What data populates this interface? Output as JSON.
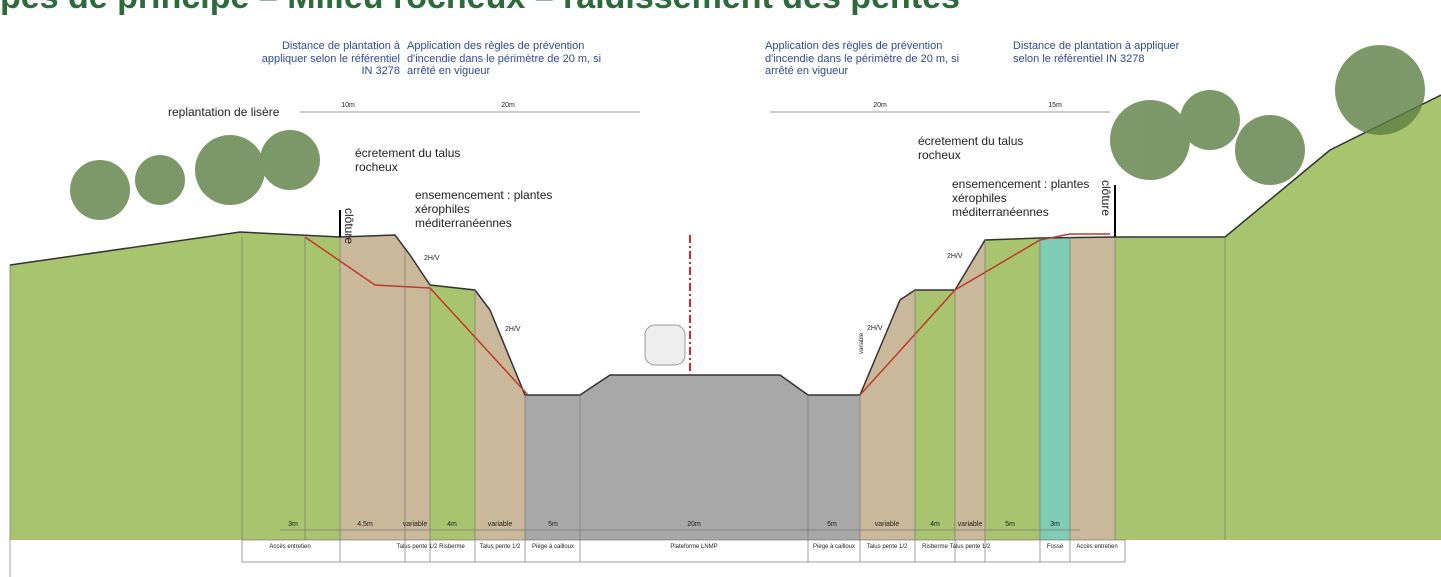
{
  "header": {
    "title": "pes de principe – Milieu rocheux – raidissement des pentes"
  },
  "top_notes": [
    "Distance de plantation à appliquer selon le référentiel IN 3278",
    "Application des règles de prévention d'incendie dans le périmètre de 20 m, si arrêté en vigueur",
    "Application des règles de prévention d'incendie dans le périmètre de 20 m, si arrêté en vigueur",
    "Distance de plantation à appliquer selon le référentiel IN 3278"
  ],
  "top_dimensions": [
    "10m",
    "20m",
    "20m",
    "15m"
  ],
  "annotations": {
    "replantation": "replantation de lisère",
    "ecretement_left": "écretement du talus rocheux",
    "ecretement_right": "écretement du talus rocheux",
    "ensemencement_left": "ensemencement : plantes xérophiles méditerranéennes",
    "ensemencement_right": "ensemencement : plantes xérophiles méditerranéennes",
    "cloture_left": "clôture",
    "cloture_right": "clôture",
    "slope_1": "2H/V",
    "slope_2": "2H/V",
    "slope_3": "2H/V",
    "slope_4": "2H/V",
    "variable": "variable"
  },
  "bottom_dimensions": [
    "3m",
    "4.5m",
    "variable",
    "4m",
    "variable",
    "5m",
    "20m",
    "5m",
    "variable",
    "4m",
    "variable",
    "5m",
    "3m"
  ],
  "bottom_labels": [
    "Accès entretien",
    "Talus pente 1/2",
    "Risberme",
    "Talus pente 1/2",
    "Piège à cailloux",
    "Plateforme LNMP",
    "Piège à cailloux",
    "Talus pente 1/2",
    "Risberme",
    "Talus pente 1/2",
    "Fossé",
    "Accès entretien"
  ]
}
